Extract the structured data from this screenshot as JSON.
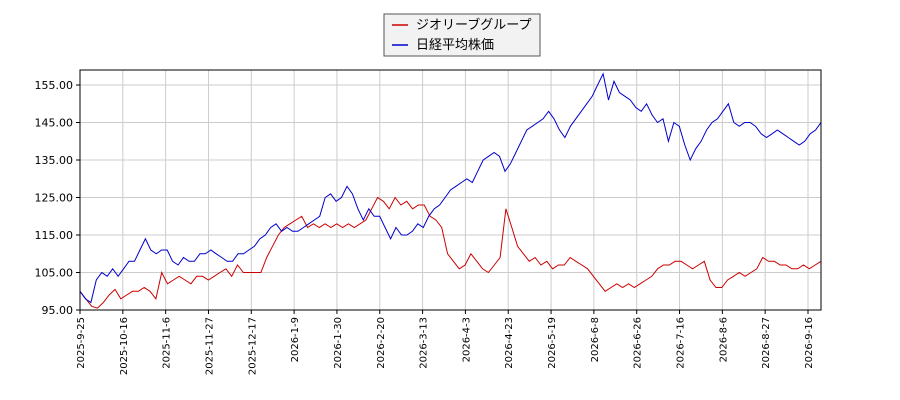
{
  "chart_data": {
    "type": "line",
    "legend": {
      "placement": "top-center",
      "entries": [
        {
          "name": "ジオリーブグループ",
          "color": "#cc0000"
        },
        {
          "name": "日経平均株価",
          "color": "#0000cc"
        }
      ]
    },
    "ylim": [
      95,
      159
    ],
    "yticks": [
      95,
      105,
      115,
      125,
      135,
      145,
      155
    ],
    "ytick_labels": [
      "95.00",
      "105.00",
      "115.00",
      "125.00",
      "135.00",
      "145.00",
      "155.00"
    ],
    "xticks": [
      "2025-9-25",
      "2025-10-16",
      "2025-11-6",
      "2025-11-27",
      "2025-12-17",
      "2026-1-9",
      "2026-1-30",
      "2026-2-20",
      "2026-3-13",
      "2026-4-3",
      "2026-4-23",
      "2026-5-19",
      "2026-6-8",
      "2026-6-26",
      "2026-7-16",
      "2026-8-6",
      "2026-8-27",
      "2026-9-16"
    ],
    "grid": true,
    "series": [
      {
        "name": "ジオリーブグループ",
        "color": "#cc0000",
        "values": [
          100,
          98,
          96,
          95.5,
          97,
          99,
          100.5,
          98,
          99,
          100,
          100,
          101,
          100,
          98,
          105,
          102,
          103,
          104,
          103,
          102,
          104,
          104,
          103,
          104,
          105,
          106,
          104,
          107,
          105,
          105,
          105,
          105,
          109,
          112,
          115,
          117,
          118,
          119,
          120,
          117,
          118,
          117,
          118,
          117,
          118,
          117,
          118,
          117,
          118,
          119,
          122,
          125,
          124,
          122,
          125,
          123,
          124,
          122,
          123,
          123,
          120,
          119,
          117,
          110,
          108,
          106,
          107,
          110,
          108,
          106,
          105,
          107,
          109,
          122,
          117,
          112,
          110,
          108,
          109,
          107,
          108,
          106,
          107,
          107,
          109,
          108,
          107,
          106,
          104,
          102,
          100,
          101,
          102,
          101,
          102,
          101,
          102,
          103,
          104,
          106,
          107,
          107,
          108,
          108,
          107,
          106,
          107,
          108,
          103,
          101,
          101,
          103,
          104,
          105,
          104,
          105,
          106,
          109,
          108,
          108,
          107,
          107,
          106,
          106,
          107,
          106,
          107,
          108
        ]
      },
      {
        "name": "日経平均株価",
        "color": "#0000cc",
        "values": [
          100,
          98,
          97,
          103,
          105,
          104,
          106,
          104,
          106,
          108,
          108,
          111,
          114,
          111,
          110,
          111,
          111,
          108,
          107,
          109,
          108,
          108,
          110,
          110,
          111,
          110,
          109,
          108,
          108,
          110,
          110,
          111,
          112,
          114,
          115,
          117,
          118,
          116,
          117,
          116,
          116,
          117,
          118,
          119,
          120,
          125,
          126,
          124,
          125,
          128,
          126,
          122,
          119,
          122,
          120,
          120,
          117,
          114,
          117,
          115,
          115,
          116,
          118,
          117,
          120,
          122,
          123,
          125,
          127,
          128,
          129,
          130,
          129,
          132,
          135,
          136,
          137,
          136,
          132,
          134,
          137,
          140,
          143,
          144,
          145,
          146,
          148,
          146,
          143,
          141,
          144,
          146,
          148,
          150,
          152,
          155,
          158,
          151,
          156,
          153,
          152,
          151,
          149,
          148,
          150,
          147,
          145,
          146,
          140,
          145,
          144,
          139,
          135,
          138,
          140,
          143,
          145,
          146,
          148,
          150,
          145,
          144,
          145,
          145,
          144,
          142,
          141,
          142,
          143,
          142,
          141,
          140,
          139,
          140,
          142,
          143,
          145
        ]
      }
    ]
  }
}
